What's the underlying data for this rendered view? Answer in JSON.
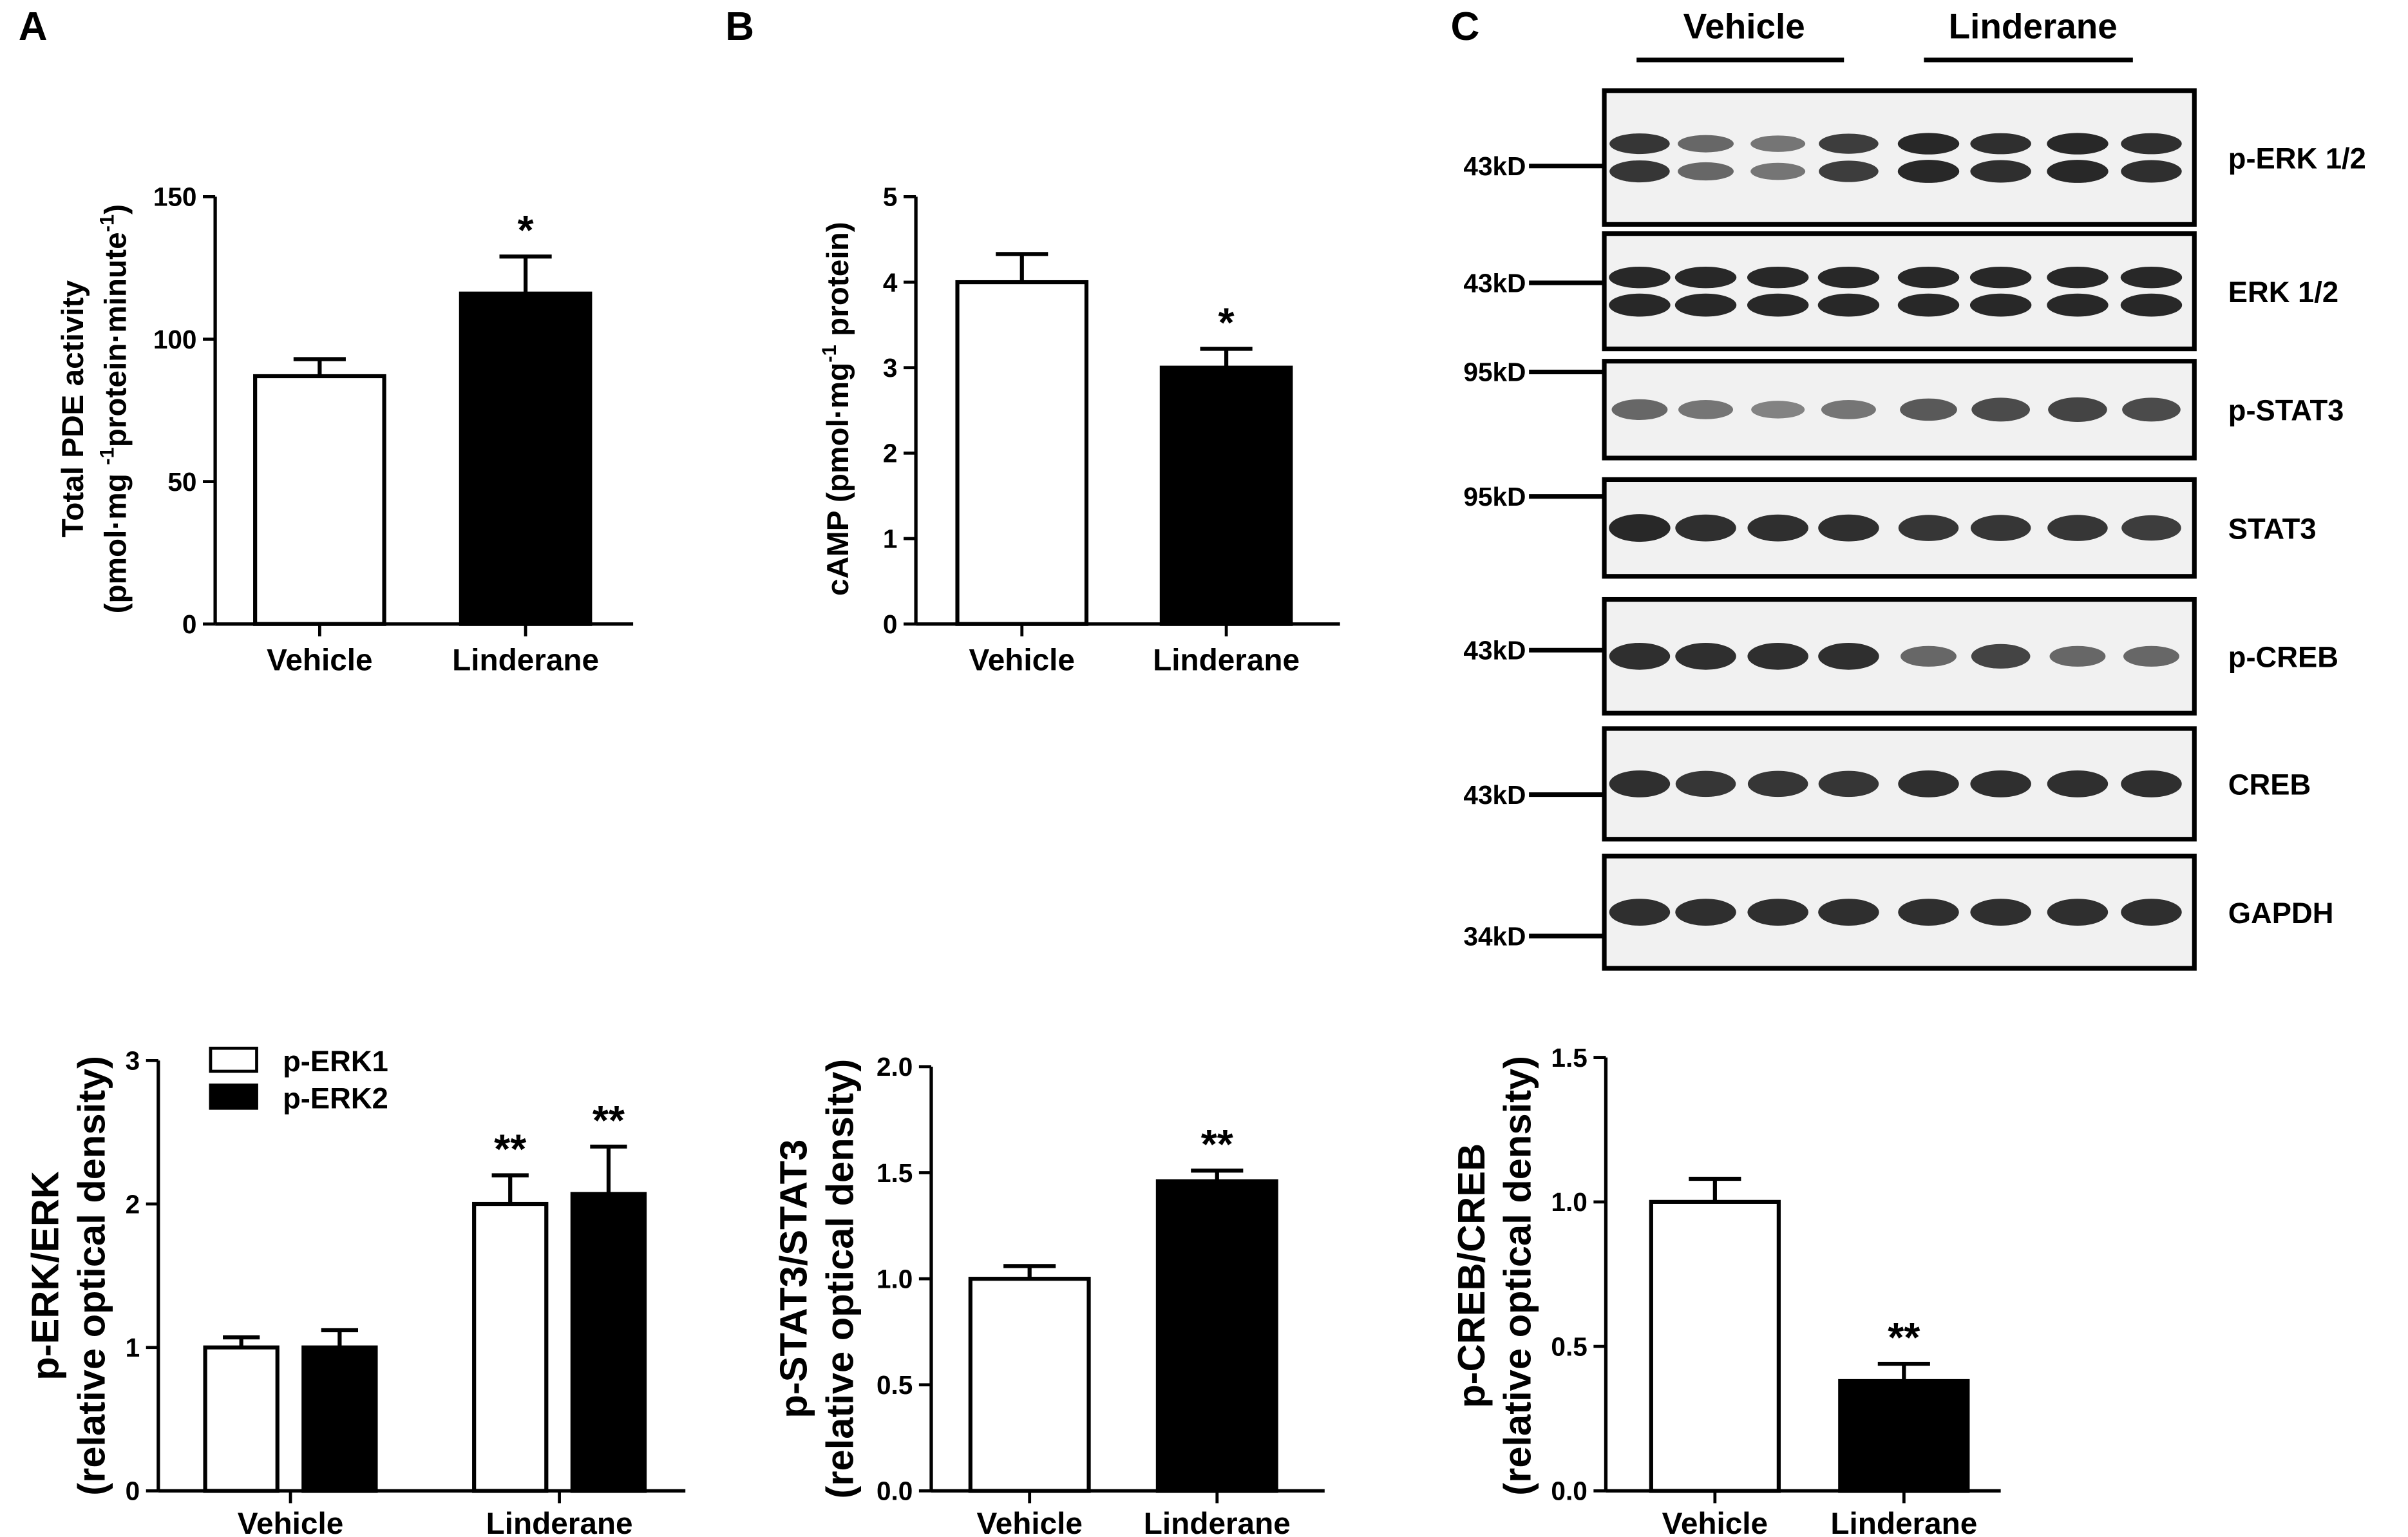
{
  "panel_letters": {
    "a": "A",
    "b": "B",
    "c": "C"
  },
  "blot": {
    "group_labels": [
      "Vehicle",
      "Linderane"
    ],
    "rows": [
      {
        "label": "p-ERK 1/2",
        "mw": "43kD",
        "doublet": true,
        "intensities": [
          0.9,
          0.55,
          0.45,
          0.85,
          1.0,
          0.95,
          1.0,
          0.95
        ]
      },
      {
        "label": "ERK 1/2",
        "mw": "43kD",
        "doublet": true,
        "intensities": [
          1,
          1,
          1,
          1,
          1,
          1,
          1,
          1
        ]
      },
      {
        "label": "p-STAT3",
        "mw": "95kD",
        "doublet": false,
        "intensities": [
          0.55,
          0.45,
          0.35,
          0.45,
          0.65,
          0.75,
          0.8,
          0.75
        ]
      },
      {
        "label": "STAT3",
        "mw": "95kD",
        "doublet": false,
        "intensities": [
          1,
          0.95,
          0.95,
          0.95,
          0.9,
          0.9,
          0.9,
          0.85
        ]
      },
      {
        "label": "p-CREB",
        "mw": "43kD",
        "doublet": false,
        "intensities": [
          0.95,
          0.95,
          0.95,
          0.95,
          0.55,
          0.8,
          0.55,
          0.55
        ]
      },
      {
        "label": "CREB",
        "mw": "43kD",
        "doublet": false,
        "intensities": [
          0.95,
          0.9,
          0.9,
          0.9,
          0.95,
          0.95,
          0.95,
          0.95
        ]
      },
      {
        "label": "GAPDH",
        "mw": "34kD",
        "doublet": false,
        "intensities": [
          0.95,
          0.95,
          0.95,
          0.95,
          0.95,
          0.95,
          0.95,
          0.95
        ]
      }
    ]
  },
  "chart_data": [
    {
      "id": "pde",
      "type": "bar",
      "categories": [
        "Vehicle",
        "Linderane"
      ],
      "series": [
        {
          "values": [
            87,
            116
          ],
          "errors": [
            6,
            13
          ],
          "colors": [
            "#ffffff",
            "#000000"
          ]
        }
      ],
      "significance": [
        "",
        "*"
      ],
      "ylabel_line1": "Total PDE activity",
      "ylabel_line2": "(pmol·mg -1protein·minute-1)",
      "ylim": [
        0,
        150
      ],
      "yticks": [
        "0",
        "50",
        "100",
        "150"
      ]
    },
    {
      "id": "camp",
      "type": "bar",
      "categories": [
        "Vehicle",
        "Linderane"
      ],
      "series": [
        {
          "values": [
            4.0,
            3.0
          ],
          "errors": [
            0.33,
            0.22
          ],
          "colors": [
            "#ffffff",
            "#000000"
          ]
        }
      ],
      "significance": [
        "",
        "*"
      ],
      "ylabel_line1": "cAMP (pmol·mg-1 protein)",
      "ylim": [
        0,
        5
      ],
      "yticks": [
        "0",
        "1",
        "2",
        "3",
        "4",
        "5"
      ]
    },
    {
      "id": "perk",
      "type": "bar",
      "categories": [
        "Vehicle",
        "Linderane"
      ],
      "series": [
        {
          "name": "p-ERK1",
          "values": [
            1.0,
            2.0
          ],
          "errors": [
            0.07,
            0.2
          ],
          "color": "#ffffff"
        },
        {
          "name": "p-ERK2",
          "values": [
            1.0,
            2.07
          ],
          "errors": [
            0.12,
            0.33
          ],
          "color": "#000000"
        }
      ],
      "significance": [
        [
          "",
          ""
        ],
        [
          "**",
          "**"
        ]
      ],
      "ylabel_line1": "p-ERK/ERK",
      "ylabel_line2": "(relative optical density)",
      "ylim": [
        0,
        3
      ],
      "yticks": [
        "0",
        "1",
        "2",
        "3"
      ]
    },
    {
      "id": "pstat3",
      "type": "bar",
      "categories": [
        "Vehicle",
        "Linderane"
      ],
      "series": [
        {
          "values": [
            1.0,
            1.46
          ],
          "errors": [
            0.06,
            0.05
          ],
          "colors": [
            "#ffffff",
            "#000000"
          ]
        }
      ],
      "significance": [
        "",
        "**"
      ],
      "ylabel_line1": "p-STAT3/STAT3",
      "ylabel_line2": "(relative optical density)",
      "ylim": [
        0,
        2.0
      ],
      "yticks": [
        "0.0",
        "0.5",
        "1.0",
        "1.5",
        "2.0"
      ]
    },
    {
      "id": "pcreb",
      "type": "bar",
      "categories": [
        "Vehicle",
        "Linderane"
      ],
      "series": [
        {
          "values": [
            1.0,
            0.38
          ],
          "errors": [
            0.08,
            0.06
          ],
          "colors": [
            "#ffffff",
            "#000000"
          ]
        }
      ],
      "significance": [
        "",
        "**"
      ],
      "ylabel_line1": "p-CREB/CREB",
      "ylabel_line2": "(relative optical density)",
      "ylim": [
        0,
        1.5
      ],
      "yticks": [
        "0.0",
        "0.5",
        "1.0",
        "1.5"
      ]
    }
  ]
}
